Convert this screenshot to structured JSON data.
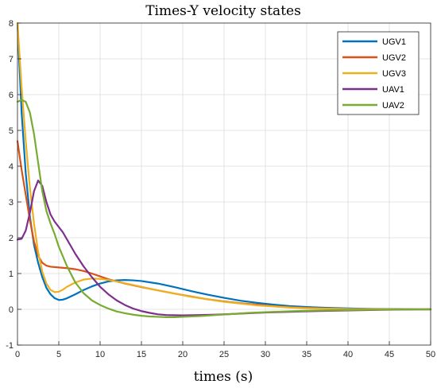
{
  "chart_data": {
    "type": "line",
    "title": "Times-Y velocity states",
    "xlabel": "times (s)",
    "ylabel": "",
    "xlim": [
      0,
      50
    ],
    "ylim": [
      -1,
      8
    ],
    "xticks": [
      0,
      5,
      10,
      15,
      20,
      25,
      30,
      35,
      40,
      45,
      50
    ],
    "yticks": [
      -1,
      0,
      1,
      2,
      3,
      4,
      5,
      6,
      7,
      8
    ],
    "grid": true,
    "legend_position": "top-right",
    "series": [
      {
        "name": "UGV1",
        "color": "#0072BD",
        "points": [
          [
            0,
            8
          ],
          [
            0.5,
            5.5
          ],
          [
            1,
            3.8
          ],
          [
            1.5,
            2.6
          ],
          [
            2,
            1.8
          ],
          [
            2.5,
            1.3
          ],
          [
            3,
            0.9
          ],
          [
            3.5,
            0.6
          ],
          [
            4,
            0.42
          ],
          [
            4.5,
            0.31
          ],
          [
            5,
            0.26
          ],
          [
            5.5,
            0.27
          ],
          [
            6,
            0.31
          ],
          [
            7,
            0.42
          ],
          [
            8,
            0.54
          ],
          [
            9,
            0.64
          ],
          [
            10,
            0.72
          ],
          [
            11,
            0.78
          ],
          [
            12,
            0.81
          ],
          [
            13,
            0.82
          ],
          [
            14,
            0.81
          ],
          [
            15,
            0.79
          ],
          [
            17,
            0.72
          ],
          [
            19,
            0.62
          ],
          [
            21,
            0.51
          ],
          [
            23,
            0.41
          ],
          [
            25,
            0.32
          ],
          [
            27,
            0.24
          ],
          [
            29,
            0.18
          ],
          [
            31,
            0.13
          ],
          [
            33,
            0.09
          ],
          [
            35,
            0.065
          ],
          [
            37,
            0.045
          ],
          [
            40,
            0.025
          ],
          [
            43,
            0.012
          ],
          [
            46,
            0.005
          ],
          [
            50,
            0.0
          ]
        ]
      },
      {
        "name": "UGV2",
        "color": "#D95319",
        "points": [
          [
            0,
            4.7
          ],
          [
            0.5,
            3.9
          ],
          [
            1,
            3.2
          ],
          [
            1.5,
            2.5
          ],
          [
            2,
            1.9
          ],
          [
            2.5,
            1.5
          ],
          [
            3,
            1.3
          ],
          [
            3.5,
            1.22
          ],
          [
            4,
            1.19
          ],
          [
            5,
            1.17
          ],
          [
            6,
            1.15
          ],
          [
            7,
            1.12
          ],
          [
            8,
            1.07
          ],
          [
            9,
            1.0
          ],
          [
            10,
            0.92
          ],
          [
            11,
            0.84
          ],
          [
            12,
            0.78
          ],
          [
            13,
            0.72
          ],
          [
            14,
            0.67
          ],
          [
            15,
            0.62
          ],
          [
            17,
            0.53
          ],
          [
            19,
            0.44
          ],
          [
            21,
            0.36
          ],
          [
            23,
            0.28
          ],
          [
            25,
            0.22
          ],
          [
            27,
            0.17
          ],
          [
            29,
            0.13
          ],
          [
            31,
            0.09
          ],
          [
            33,
            0.06
          ],
          [
            35,
            0.04
          ],
          [
            37,
            0.025
          ],
          [
            40,
            0.01
          ],
          [
            43,
            0.004
          ],
          [
            46,
            0.001
          ],
          [
            50,
            0.0
          ]
        ]
      },
      {
        "name": "UGV3",
        "color": "#EDB120",
        "points": [
          [
            0,
            8
          ],
          [
            0.5,
            6.2
          ],
          [
            1,
            4.7
          ],
          [
            1.5,
            3.4
          ],
          [
            2,
            2.4
          ],
          [
            2.5,
            1.6
          ],
          [
            3,
            1.05
          ],
          [
            3.5,
            0.72
          ],
          [
            4,
            0.54
          ],
          [
            4.5,
            0.48
          ],
          [
            5,
            0.49
          ],
          [
            5.5,
            0.55
          ],
          [
            6,
            0.63
          ],
          [
            7,
            0.75
          ],
          [
            8,
            0.83
          ],
          [
            9,
            0.86
          ],
          [
            10,
            0.85
          ],
          [
            11,
            0.82
          ],
          [
            12,
            0.78
          ],
          [
            13,
            0.73
          ],
          [
            14,
            0.68
          ],
          [
            15,
            0.63
          ],
          [
            17,
            0.53
          ],
          [
            19,
            0.44
          ],
          [
            21,
            0.35
          ],
          [
            23,
            0.28
          ],
          [
            25,
            0.21
          ],
          [
            27,
            0.16
          ],
          [
            29,
            0.11
          ],
          [
            31,
            0.08
          ],
          [
            33,
            0.05
          ],
          [
            35,
            0.03
          ],
          [
            37,
            0.02
          ],
          [
            40,
            0.008
          ],
          [
            43,
            0.003
          ],
          [
            46,
            0.001
          ],
          [
            50,
            0.0
          ]
        ]
      },
      {
        "name": "UAV1",
        "color": "#7E2F8E",
        "points": [
          [
            0,
            1.95
          ],
          [
            0.5,
            1.97
          ],
          [
            1,
            2.2
          ],
          [
            1.5,
            2.7
          ],
          [
            2,
            3.3
          ],
          [
            2.5,
            3.6
          ],
          [
            3,
            3.45
          ],
          [
            3.5,
            3.0
          ],
          [
            4,
            2.65
          ],
          [
            4.5,
            2.45
          ],
          [
            5,
            2.3
          ],
          [
            5.5,
            2.15
          ],
          [
            6,
            1.95
          ],
          [
            7,
            1.55
          ],
          [
            8,
            1.2
          ],
          [
            9,
            0.9
          ],
          [
            10,
            0.63
          ],
          [
            11,
            0.42
          ],
          [
            12,
            0.25
          ],
          [
            13,
            0.12
          ],
          [
            14,
            0.02
          ],
          [
            15,
            -0.05
          ],
          [
            16,
            -0.1
          ],
          [
            17,
            -0.14
          ],
          [
            18,
            -0.16
          ],
          [
            20,
            -0.17
          ],
          [
            22,
            -0.16
          ],
          [
            24,
            -0.15
          ],
          [
            26,
            -0.13
          ],
          [
            28,
            -0.11
          ],
          [
            30,
            -0.09
          ],
          [
            33,
            -0.07
          ],
          [
            36,
            -0.05
          ],
          [
            40,
            -0.03
          ],
          [
            44,
            -0.015
          ],
          [
            47,
            -0.007
          ],
          [
            50,
            0.0
          ]
        ]
      },
      {
        "name": "UAV2",
        "color": "#77AC30",
        "points": [
          [
            0,
            5.8
          ],
          [
            0.5,
            5.85
          ],
          [
            1,
            5.8
          ],
          [
            1.5,
            5.5
          ],
          [
            2,
            4.9
          ],
          [
            2.5,
            4.1
          ],
          [
            3,
            3.3
          ],
          [
            3.5,
            2.75
          ],
          [
            4,
            2.4
          ],
          [
            4.5,
            2.1
          ],
          [
            5,
            1.75
          ],
          [
            6,
            1.2
          ],
          [
            7,
            0.75
          ],
          [
            8,
            0.45
          ],
          [
            9,
            0.25
          ],
          [
            10,
            0.12
          ],
          [
            11,
            0.02
          ],
          [
            12,
            -0.06
          ],
          [
            13,
            -0.11
          ],
          [
            14,
            -0.15
          ],
          [
            15,
            -0.18
          ],
          [
            16,
            -0.2
          ],
          [
            17,
            -0.21
          ],
          [
            18,
            -0.22
          ],
          [
            19,
            -0.22
          ],
          [
            20,
            -0.21
          ],
          [
            22,
            -0.19
          ],
          [
            24,
            -0.16
          ],
          [
            26,
            -0.13
          ],
          [
            28,
            -0.1
          ],
          [
            30,
            -0.08
          ],
          [
            33,
            -0.055
          ],
          [
            36,
            -0.035
          ],
          [
            40,
            -0.02
          ],
          [
            44,
            -0.01
          ],
          [
            47,
            -0.004
          ],
          [
            50,
            0.0
          ]
        ]
      }
    ]
  }
}
